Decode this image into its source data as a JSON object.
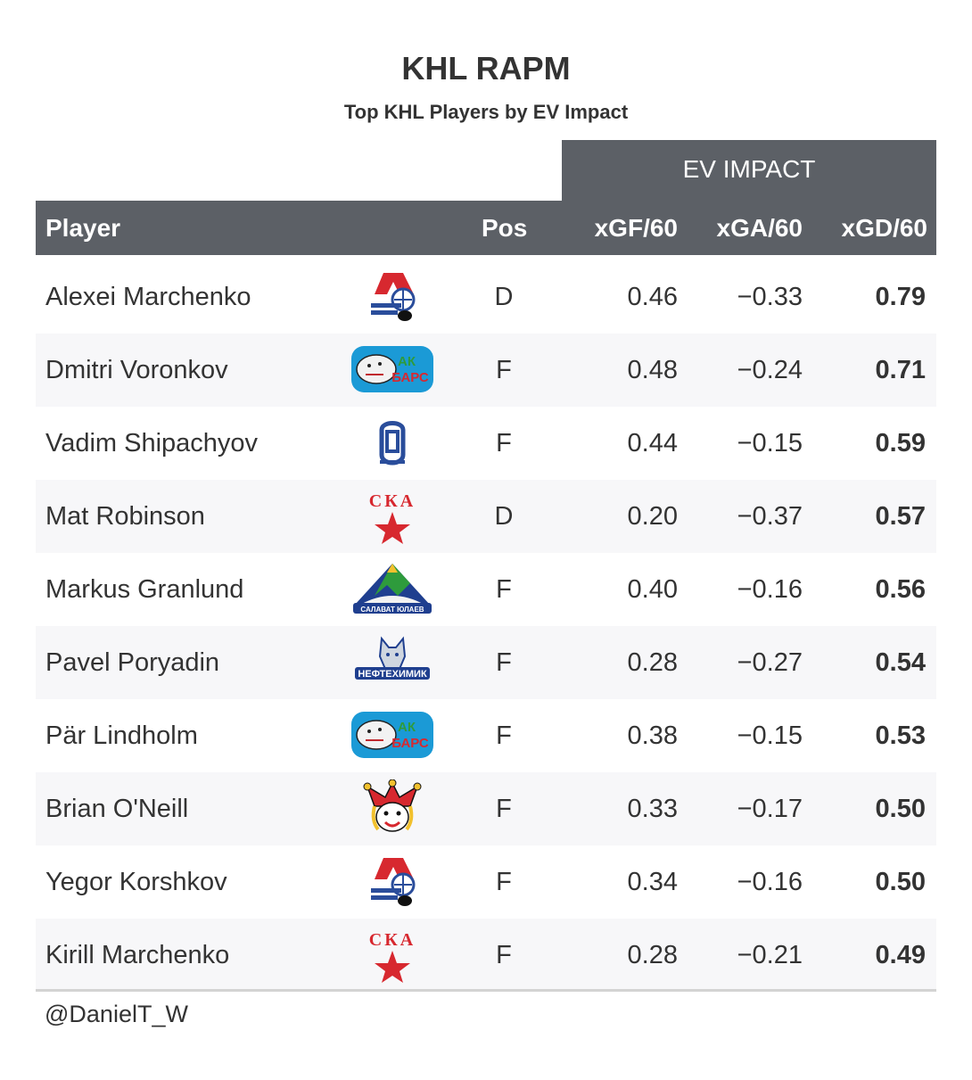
{
  "chart_data": {
    "type": "table",
    "title": "KHL RAPM",
    "subtitle": "Top KHL Players by EV Impact",
    "spanner_label": "EV IMPACT",
    "columns": {
      "player": "Player",
      "pos": "Pos",
      "xgf": "xGF/60",
      "xga": "xGA/60",
      "xgd": "xGD/60"
    },
    "rows": [
      {
        "player": "Alexei Marchenko",
        "team_logo": "lokomotiv-logo",
        "pos": "D",
        "xgf": "0.46",
        "xga": "−0.33",
        "xgd": "0.79"
      },
      {
        "player": "Dmitri Voronkov",
        "team_logo": "ak-bars-logo",
        "pos": "F",
        "xgf": "0.48",
        "xga": "−0.24",
        "xgd": "0.71"
      },
      {
        "player": "Vadim Shipachyov",
        "team_logo": "dynamo-logo",
        "pos": "F",
        "xgf": "0.44",
        "xga": "−0.15",
        "xgd": "0.59"
      },
      {
        "player": "Mat Robinson",
        "team_logo": "ska-logo",
        "pos": "D",
        "xgf": "0.20",
        "xga": "−0.37",
        "xgd": "0.57"
      },
      {
        "player": "Markus Granlund",
        "team_logo": "salavat-yulaev-logo",
        "pos": "F",
        "xgf": "0.40",
        "xga": "−0.16",
        "xgd": "0.56"
      },
      {
        "player": "Pavel Poryadin",
        "team_logo": "neftekhimik-logo",
        "pos": "F",
        "xgf": "0.28",
        "xga": "−0.27",
        "xgd": "0.54"
      },
      {
        "player": "Pär Lindholm",
        "team_logo": "ak-bars-logo",
        "pos": "F",
        "xgf": "0.38",
        "xga": "−0.15",
        "xgd": "0.53"
      },
      {
        "player": "Brian O'Neill",
        "team_logo": "jokerit-logo",
        "pos": "F",
        "xgf": "0.33",
        "xga": "−0.17",
        "xgd": "0.50"
      },
      {
        "player": "Yegor Korshkov",
        "team_logo": "lokomotiv-logo",
        "pos": "F",
        "xgf": "0.34",
        "xga": "−0.16",
        "xgd": "0.50"
      },
      {
        "player": "Kirill Marchenko",
        "team_logo": "ska-logo",
        "pos": "F",
        "xgf": "0.28",
        "xga": "−0.21",
        "xgd": "0.49"
      }
    ],
    "logo_text": {
      "ak_bars": "АК БАРС",
      "ska": "СКА",
      "salavat": "САЛАВАТ ЮЛАЕВ",
      "neftekhimik": "НЕФТЕХИМИК"
    },
    "colors": {
      "header_bg": "#5c6066",
      "header_text": "#ffffff",
      "alt_row_bg": "#f7f7f9",
      "text": "#333333"
    }
  },
  "source_credit": "@DanielT_W"
}
